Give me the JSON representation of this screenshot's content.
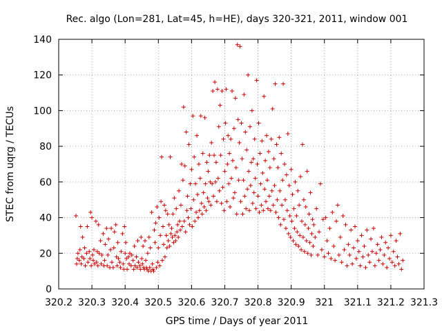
{
  "chart_data": {
    "type": "scatter",
    "title": "Rec. algo (Lon=281, Lat=45, h=HE), days 320-321, 2011, window 001",
    "xlabel": "GPS time / Days of year 2011",
    "ylabel": "STEC from uqrg / TECUs",
    "xlim": [
      320.2,
      321.3
    ],
    "ylim": [
      0,
      140
    ],
    "grid": true,
    "marker": "plus",
    "color": "#cc0000",
    "x_ticks": [
      "320.2",
      "320.3",
      "320.4",
      "320.5",
      "320.6",
      "320.7",
      "320.8",
      "320.9",
      "321",
      "321.1",
      "321.2",
      "321.3"
    ],
    "y_ticks": [
      "0",
      "20",
      "40",
      "60",
      "80",
      "100",
      "120",
      "140"
    ],
    "points": [
      [
        320.252,
        41
      ],
      [
        320.254,
        14
      ],
      [
        320.256,
        17
      ],
      [
        320.258,
        20
      ],
      [
        320.262,
        16
      ],
      [
        320.264,
        22
      ],
      [
        320.266,
        35
      ],
      [
        320.268,
        14
      ],
      [
        320.27,
        18
      ],
      [
        320.272,
        29
      ],
      [
        320.276,
        17
      ],
      [
        320.278,
        23
      ],
      [
        320.28,
        13
      ],
      [
        320.284,
        20
      ],
      [
        320.286,
        35
      ],
      [
        320.288,
        15
      ],
      [
        320.292,
        21
      ],
      [
        320.294,
        17
      ],
      [
        320.296,
        43
      ],
      [
        320.298,
        13
      ],
      [
        320.3,
        40
      ],
      [
        320.302,
        19
      ],
      [
        320.304,
        16
      ],
      [
        320.306,
        22
      ],
      [
        320.308,
        14
      ],
      [
        320.312,
        38
      ],
      [
        320.314,
        15
      ],
      [
        320.316,
        21
      ],
      [
        320.318,
        13
      ],
      [
        320.32,
        36
      ],
      [
        320.322,
        20
      ],
      [
        320.326,
        27
      ],
      [
        320.328,
        14
      ],
      [
        320.33,
        19
      ],
      [
        320.334,
        31
      ],
      [
        320.336,
        13
      ],
      [
        320.338,
        16
      ],
      [
        320.34,
        25
      ],
      [
        320.344,
        34
      ],
      [
        320.346,
        13
      ],
      [
        320.348,
        19
      ],
      [
        320.35,
        28
      ],
      [
        320.354,
        12
      ],
      [
        320.356,
        22
      ],
      [
        320.358,
        34
      ],
      [
        320.36,
        15
      ],
      [
        320.364,
        12
      ],
      [
        320.366,
        23
      ],
      [
        320.368,
        32
      ],
      [
        320.372,
        36
      ],
      [
        320.374,
        18
      ],
      [
        320.376,
        13
      ],
      [
        320.378,
        26
      ],
      [
        320.38,
        17
      ],
      [
        320.384,
        15
      ],
      [
        320.386,
        12
      ],
      [
        320.388,
        21
      ],
      [
        320.392,
        31
      ],
      [
        320.394,
        14
      ],
      [
        320.396,
        11
      ],
      [
        320.398,
        35
      ],
      [
        320.4,
        20
      ],
      [
        320.402,
        26
      ],
      [
        320.404,
        17
      ],
      [
        320.406,
        11
      ],
      [
        320.41,
        18
      ],
      [
        320.412,
        14
      ],
      [
        320.414,
        20
      ],
      [
        320.418,
        13
      ],
      [
        320.42,
        19
      ],
      [
        320.424,
        16
      ],
      [
        320.426,
        11
      ],
      [
        320.428,
        24
      ],
      [
        320.43,
        13
      ],
      [
        320.434,
        18
      ],
      [
        320.436,
        12
      ],
      [
        320.438,
        27
      ],
      [
        320.44,
        15
      ],
      [
        320.444,
        13
      ],
      [
        320.446,
        11
      ],
      [
        320.448,
        29
      ],
      [
        320.45,
        17
      ],
      [
        320.452,
        14
      ],
      [
        320.454,
        24
      ],
      [
        320.456,
        12
      ],
      [
        320.458,
        11
      ],
      [
        320.46,
        27
      ],
      [
        320.462,
        16
      ],
      [
        320.464,
        12
      ],
      [
        320.466,
        11
      ],
      [
        320.468,
        20
      ],
      [
        320.47,
        10
      ],
      [
        320.472,
        29
      ],
      [
        320.474,
        12
      ],
      [
        320.476,
        23
      ],
      [
        320.478,
        10
      ],
      [
        320.48,
        43
      ],
      [
        320.482,
        14
      ],
      [
        320.484,
        11
      ],
      [
        320.486,
        10
      ],
      [
        320.488,
        33
      ],
      [
        320.49,
        26
      ],
      [
        320.492,
        37
      ],
      [
        320.494,
        12
      ],
      [
        320.496,
        46
      ],
      [
        320.498,
        15
      ],
      [
        320.5,
        23
      ],
      [
        320.502,
        40
      ],
      [
        320.504,
        13
      ],
      [
        320.506,
        30
      ],
      [
        320.508,
        49
      ],
      [
        320.51,
        74
      ],
      [
        320.512,
        16
      ],
      [
        320.514,
        35
      ],
      [
        320.516,
        25
      ],
      [
        320.518,
        47
      ],
      [
        320.52,
        18
      ],
      [
        320.522,
        44
      ],
      [
        320.524,
        30
      ],
      [
        320.526,
        23
      ],
      [
        320.528,
        42
      ],
      [
        320.53,
        27
      ],
      [
        320.532,
        36
      ],
      [
        320.534,
        24
      ],
      [
        320.536,
        74
      ],
      [
        320.538,
        31
      ],
      [
        320.54,
        34
      ],
      [
        320.542,
        29
      ],
      [
        320.544,
        42
      ],
      [
        320.546,
        26
      ],
      [
        320.548,
        51
      ],
      [
        320.55,
        30
      ],
      [
        320.552,
        27
      ],
      [
        320.554,
        45
      ],
      [
        320.556,
        32
      ],
      [
        320.558,
        36
      ],
      [
        320.56,
        29
      ],
      [
        320.562,
        55
      ],
      [
        320.564,
        38
      ],
      [
        320.566,
        33
      ],
      [
        320.568,
        47
      ],
      [
        320.57,
        70
      ],
      [
        320.572,
        35
      ],
      [
        320.574,
        61
      ],
      [
        320.576,
        102
      ],
      [
        320.578,
        38
      ],
      [
        320.58,
        69
      ],
      [
        320.582,
        32
      ],
      [
        320.584,
        88
      ],
      [
        320.586,
        44
      ],
      [
        320.588,
        52
      ],
      [
        320.59,
        40
      ],
      [
        320.592,
        81
      ],
      [
        320.594,
        36
      ],
      [
        320.596,
        59
      ],
      [
        320.598,
        45
      ],
      [
        320.6,
        67
      ],
      [
        320.602,
        35
      ],
      [
        320.604,
        97
      ],
      [
        320.606,
        50
      ],
      [
        320.608,
        74
      ],
      [
        320.61,
        38
      ],
      [
        320.612,
        59
      ],
      [
        320.614,
        43
      ],
      [
        320.616,
        86
      ],
      [
        320.618,
        53
      ],
      [
        320.62,
        40
      ],
      [
        320.622,
        70
      ],
      [
        320.624,
        44
      ],
      [
        320.626,
        62
      ],
      [
        320.628,
        97
      ],
      [
        320.63,
        48
      ],
      [
        320.632,
        42
      ],
      [
        320.634,
        76
      ],
      [
        320.636,
        54
      ],
      [
        320.638,
        46
      ],
      [
        320.64,
        96
      ],
      [
        320.642,
        59
      ],
      [
        320.644,
        44
      ],
      [
        320.646,
        71
      ],
      [
        320.648,
        51
      ],
      [
        320.65,
        66
      ],
      [
        320.652,
        49
      ],
      [
        320.654,
        75
      ],
      [
        320.656,
        60
      ],
      [
        320.658,
        47
      ],
      [
        320.66,
        82
      ],
      [
        320.662,
        59
      ],
      [
        320.664,
        111
      ],
      [
        320.666,
        52
      ],
      [
        320.668,
        75
      ],
      [
        320.67,
        116
      ],
      [
        320.672,
        60
      ],
      [
        320.674,
        71
      ],
      [
        320.676,
        49
      ],
      [
        320.678,
        112
      ],
      [
        320.68,
        62
      ],
      [
        320.682,
        91
      ],
      [
        320.684,
        55
      ],
      [
        320.686,
        103
      ],
      [
        320.688,
        75
      ],
      [
        320.69,
        48
      ],
      [
        320.692,
        111
      ],
      [
        320.694,
        57
      ],
      [
        320.696,
        84
      ],
      [
        320.698,
        44
      ],
      [
        320.7,
        66
      ],
      [
        320.702,
        93
      ],
      [
        320.704,
        112
      ],
      [
        320.706,
        49
      ],
      [
        320.708,
        70
      ],
      [
        320.71,
        86
      ],
      [
        320.712,
        59
      ],
      [
        320.714,
        76
      ],
      [
        320.716,
        46
      ],
      [
        320.718,
        84
      ],
      [
        320.72,
        62
      ],
      [
        320.722,
        111
      ],
      [
        320.724,
        72
      ],
      [
        320.726,
        51
      ],
      [
        320.728,
        90
      ],
      [
        320.73,
        54
      ],
      [
        320.732,
        107
      ],
      [
        320.734,
        68
      ],
      [
        320.736,
        42
      ],
      [
        320.738,
        137
      ],
      [
        320.74,
        95
      ],
      [
        320.742,
        61
      ],
      [
        320.744,
        82
      ],
      [
        320.746,
        136
      ],
      [
        320.748,
        49
      ],
      [
        320.75,
        93
      ],
      [
        320.752,
        73
      ],
      [
        320.754,
        42
      ],
      [
        320.756,
        61
      ],
      [
        320.758,
        109
      ],
      [
        320.76,
        52
      ],
      [
        320.762,
        88
      ],
      [
        320.764,
        45
      ],
      [
        320.766,
        78
      ],
      [
        320.768,
        56
      ],
      [
        320.77,
        120
      ],
      [
        320.772,
        66
      ],
      [
        320.774,
        44
      ],
      [
        320.776,
        91
      ],
      [
        320.778,
        58
      ],
      [
        320.78,
        71
      ],
      [
        320.782,
        100
      ],
      [
        320.784,
        48
      ],
      [
        320.786,
        73
      ],
      [
        320.788,
        54
      ],
      [
        320.79,
        84
      ],
      [
        320.792,
        62
      ],
      [
        320.794,
        45
      ],
      [
        320.796,
        117
      ],
      [
        320.798,
        70
      ],
      [
        320.8,
        52
      ],
      [
        320.802,
        93
      ],
      [
        320.804,
        43
      ],
      [
        320.806,
        76
      ],
      [
        320.808,
        59
      ],
      [
        320.81,
        47
      ],
      [
        320.812,
        83
      ],
      [
        320.814,
        65
      ],
      [
        320.816,
        44
      ],
      [
        320.818,
        108
      ],
      [
        320.82,
        56
      ],
      [
        320.822,
        72
      ],
      [
        320.824,
        49
      ],
      [
        320.826,
        86
      ],
      [
        320.828,
        61
      ],
      [
        320.83,
        45
      ],
      [
        320.832,
        77
      ],
      [
        320.834,
        52
      ],
      [
        320.836,
        68
      ],
      [
        320.838,
        44
      ],
      [
        320.84,
        84
      ],
      [
        320.842,
        55
      ],
      [
        320.844,
        101
      ],
      [
        320.846,
        47
      ],
      [
        320.848,
        73
      ],
      [
        320.85,
        58
      ],
      [
        320.852,
        115
      ],
      [
        320.854,
        43
      ],
      [
        320.856,
        81
      ],
      [
        320.858,
        50
      ],
      [
        320.86,
        68
      ],
      [
        320.862,
        40
      ],
      [
        320.864,
        85
      ],
      [
        320.866,
        55
      ],
      [
        320.868,
        36
      ],
      [
        320.87,
        76
      ],
      [
        320.872,
        47
      ],
      [
        320.874,
        61
      ],
      [
        320.876,
        115
      ],
      [
        320.878,
        39
      ],
      [
        320.88,
        70
      ],
      [
        320.882,
        50
      ],
      [
        320.884,
        34
      ],
      [
        320.886,
        64
      ],
      [
        320.888,
        44
      ],
      [
        320.89,
        87
      ],
      [
        320.892,
        31
      ],
      [
        320.894,
        58
      ],
      [
        320.896,
        41
      ],
      [
        320.898,
        29
      ],
      [
        320.9,
        67
      ],
      [
        320.902,
        38
      ],
      [
        320.904,
        53
      ],
      [
        320.906,
        27
      ],
      [
        320.908,
        45
      ],
      [
        320.91,
        34
      ],
      [
        320.912,
        60
      ],
      [
        320.914,
        25
      ],
      [
        320.916,
        41
      ],
      [
        320.918,
        32
      ],
      [
        320.92,
        55
      ],
      [
        320.922,
        24
      ],
      [
        320.924,
        47
      ],
      [
        320.926,
        30
      ],
      [
        320.928,
        63
      ],
      [
        320.93,
        22
      ],
      [
        320.932,
        38
      ],
      [
        320.934,
        81
      ],
      [
        320.936,
        29
      ],
      [
        320.938,
        50
      ],
      [
        320.94,
        21
      ],
      [
        320.942,
        36
      ],
      [
        320.944,
        46
      ],
      [
        320.946,
        27
      ],
      [
        320.948,
        66
      ],
      [
        320.95,
        20
      ],
      [
        320.952,
        34
      ],
      [
        320.954,
        42
      ],
      [
        320.956,
        26
      ],
      [
        320.958,
        54
      ],
      [
        320.96,
        19
      ],
      [
        320.962,
        31
      ],
      [
        320.964,
        39
      ],
      [
        320.966,
        24
      ],
      [
        320.968,
        36
      ],
      [
        320.972,
        29
      ],
      [
        320.976,
        45
      ],
      [
        320.98,
        19
      ],
      [
        320.984,
        32
      ],
      [
        320.988,
        59
      ],
      [
        320.992,
        22
      ],
      [
        320.996,
        39
      ],
      [
        321.0,
        18
      ],
      [
        321.004,
        40
      ],
      [
        321.008,
        27
      ],
      [
        321.012,
        20
      ],
      [
        321.016,
        34
      ],
      [
        321.02,
        17
      ],
      [
        321.024,
        43
      ],
      [
        321.028,
        24
      ],
      [
        321.032,
        16
      ],
      [
        321.036,
        38
      ],
      [
        321.04,
        47
      ],
      [
        321.044,
        19
      ],
      [
        321.048,
        29
      ],
      [
        321.052,
        15
      ],
      [
        321.056,
        41
      ],
      [
        321.06,
        22
      ],
      [
        321.064,
        36
      ],
      [
        321.068,
        13
      ],
      [
        321.072,
        25
      ],
      [
        321.076,
        19
      ],
      [
        321.08,
        33
      ],
      [
        321.084,
        14
      ],
      [
        321.088,
        23
      ],
      [
        321.092,
        35
      ],
      [
        321.096,
        17
      ],
      [
        321.1,
        27
      ],
      [
        321.104,
        21
      ],
      [
        321.108,
        13
      ],
      [
        321.112,
        30
      ],
      [
        321.116,
        18
      ],
      [
        321.12,
        24
      ],
      [
        321.124,
        12
      ],
      [
        321.128,
        33
      ],
      [
        321.132,
        19
      ],
      [
        321.136,
        15
      ],
      [
        321.14,
        28
      ],
      [
        321.144,
        21
      ],
      [
        321.148,
        34
      ],
      [
        321.152,
        13
      ],
      [
        321.156,
        20
      ],
      [
        321.16,
        25
      ],
      [
        321.164,
        16
      ],
      [
        321.168,
        22
      ],
      [
        321.172,
        29
      ],
      [
        321.176,
        14
      ],
      [
        321.18,
        19
      ],
      [
        321.184,
        26
      ],
      [
        321.188,
        12
      ],
      [
        321.192,
        23
      ],
      [
        321.196,
        17
      ],
      [
        321.2,
        30
      ],
      [
        321.204,
        15
      ],
      [
        321.208,
        21
      ],
      [
        321.212,
        13
      ],
      [
        321.216,
        27
      ],
      [
        321.22,
        18
      ],
      [
        321.224,
        14
      ],
      [
        321.228,
        31
      ],
      [
        321.232,
        11
      ],
      [
        321.236,
        16
      ]
    ]
  }
}
